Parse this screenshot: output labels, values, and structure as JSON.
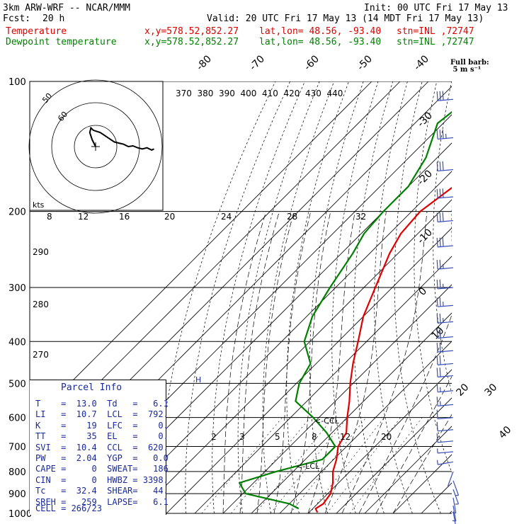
{
  "header": {
    "model": "3km ARW-WRF -- NCAR/MMM",
    "init": "Init: 00 UTC Fri 17 May 13",
    "fcst_label": "Fcst:",
    "fcst_value": "20 h",
    "valid": "Valid: 20 UTC Fri 17 May 13 (14 MDT Fri 17 May 13)",
    "temp_line": {
      "label": "Temperature",
      "xy": "x,y=578.52,852.27",
      "latlon": "lat,lon= 48.56, -93.40",
      "stn": "stn=INL ,72747"
    },
    "dew_line": {
      "label": "Dewpoint temperature",
      "xy": "x,y=578.52,852.27",
      "latlon": "lat,lon= 48.56, -93.40",
      "stn": "stn=INL ,72747"
    }
  },
  "full_barb": "Full barb:\n 5 m s⁻¹",
  "colors": {
    "temperature": "#e00000",
    "dewpoint": "#008000",
    "text_blue": "#1a2a9a",
    "barbs": "#3a4fb5"
  },
  "chart_data": {
    "type": "line",
    "title": "",
    "ylabel": "",
    "xlabel": "",
    "pressure_ticks": [
      100,
      200,
      300,
      400,
      500,
      600,
      700,
      800,
      900,
      1000
    ],
    "isotherm_labels": [
      -80,
      -70,
      -60,
      -50,
      -40,
      -30,
      -20,
      -10,
      0,
      10,
      20,
      30,
      40
    ],
    "theta_labels": [
      370,
      380,
      390,
      400,
      410,
      420,
      430,
      440
    ],
    "theta_left_labels": [
      290,
      280,
      270
    ],
    "theta_top_labels": [
      50,
      60
    ],
    "mixing_ratio_labels": [
      2,
      3,
      5,
      8,
      12,
      20
    ],
    "hodo_speed_labels": [
      8,
      12,
      16,
      20,
      24,
      28,
      32
    ],
    "hodo_kts_label": "kts",
    "ccl_label": "<-CCL",
    "lcl_label": "<-LCL",
    "series": [
      {
        "name": "Temperature",
        "points": [
          {
            "p": 100,
            "t": -52
          },
          {
            "p": 125,
            "t": -50
          },
          {
            "p": 150,
            "t": -51
          },
          {
            "p": 175,
            "t": -54
          },
          {
            "p": 200,
            "t": -57
          },
          {
            "p": 225,
            "t": -56
          },
          {
            "p": 250,
            "t": -53
          },
          {
            "p": 300,
            "t": -46
          },
          {
            "p": 350,
            "t": -40
          },
          {
            "p": 400,
            "t": -33
          },
          {
            "p": 450,
            "t": -27
          },
          {
            "p": 500,
            "t": -21
          },
          {
            "p": 550,
            "t": -15
          },
          {
            "p": 600,
            "t": -10
          },
          {
            "p": 650,
            "t": -5
          },
          {
            "p": 700,
            "t": -3
          },
          {
            "p": 750,
            "t": 1
          },
          {
            "p": 800,
            "t": 4
          },
          {
            "p": 850,
            "t": 8
          },
          {
            "p": 900,
            "t": 11
          },
          {
            "p": 950,
            "t": 12
          },
          {
            "p": 975,
            "t": 11
          },
          {
            "p": 995,
            "t": 13
          }
        ]
      },
      {
        "name": "Dewpoint temperature",
        "points": [
          {
            "p": 100,
            "t": -78
          },
          {
            "p": 125,
            "t": -82
          },
          {
            "p": 150,
            "t": -74
          },
          {
            "p": 175,
            "t": -70
          },
          {
            "p": 200,
            "t": -70
          },
          {
            "p": 225,
            "t": -69
          },
          {
            "p": 250,
            "t": -66
          },
          {
            "p": 300,
            "t": -62
          },
          {
            "p": 350,
            "t": -58
          },
          {
            "p": 400,
            "t": -52
          },
          {
            "p": 450,
            "t": -42
          },
          {
            "p": 500,
            "t": -39
          },
          {
            "p": 550,
            "t": -34
          },
          {
            "p": 600,
            "t": -22
          },
          {
            "p": 650,
            "t": -12
          },
          {
            "p": 700,
            "t": -4
          },
          {
            "p": 750,
            "t": -4
          },
          {
            "p": 800,
            "t": -16
          },
          {
            "p": 850,
            "t": -25
          },
          {
            "p": 900,
            "t": -19
          },
          {
            "p": 950,
            "t": 0
          },
          {
            "p": 975,
            "t": 5
          }
        ]
      }
    ],
    "barbs": [
      {
        "p": 110,
        "dir": 265,
        "spd": 33
      },
      {
        "p": 135,
        "dir": 265,
        "spd": 35
      },
      {
        "p": 160,
        "dir": 265,
        "spd": 34
      },
      {
        "p": 185,
        "dir": 265,
        "spd": 33
      },
      {
        "p": 210,
        "dir": 265,
        "spd": 32
      },
      {
        "p": 240,
        "dir": 265,
        "spd": 30
      },
      {
        "p": 270,
        "dir": 265,
        "spd": 29
      },
      {
        "p": 300,
        "dir": 265,
        "spd": 28
      },
      {
        "p": 330,
        "dir": 265,
        "spd": 27
      },
      {
        "p": 360,
        "dir": 265,
        "spd": 25
      },
      {
        "p": 390,
        "dir": 265,
        "spd": 24
      },
      {
        "p": 420,
        "dir": 265,
        "spd": 22
      },
      {
        "p": 450,
        "dir": 265,
        "spd": 21
      },
      {
        "p": 480,
        "dir": 265,
        "spd": 20
      },
      {
        "p": 520,
        "dir": 265,
        "spd": 18
      },
      {
        "p": 560,
        "dir": 265,
        "spd": 16
      },
      {
        "p": 600,
        "dir": 265,
        "spd": 14
      },
      {
        "p": 640,
        "dir": 265,
        "spd": 12
      },
      {
        "p": 680,
        "dir": 265,
        "spd": 10
      },
      {
        "p": 720,
        "dir": 265,
        "spd": 8
      },
      {
        "p": 760,
        "dir": 260,
        "spd": 5
      },
      {
        "p": 800,
        "dir": 200,
        "spd": 4
      },
      {
        "p": 840,
        "dir": 160,
        "spd": 6
      },
      {
        "p": 880,
        "dir": 160,
        "spd": 7
      },
      {
        "p": 920,
        "dir": 170,
        "spd": 6
      },
      {
        "p": 960,
        "dir": 170,
        "spd": 5
      },
      {
        "p": 990,
        "dir": 170,
        "spd": 4
      }
    ],
    "hodograph": [
      [
        0,
        0
      ],
      [
        -1.5,
        3
      ],
      [
        -2.5,
        6
      ],
      [
        -2,
        8
      ],
      [
        -1,
        7
      ],
      [
        2,
        6
      ],
      [
        5,
        4
      ],
      [
        8,
        2
      ],
      [
        10,
        1.5
      ],
      [
        12,
        1
      ],
      [
        14,
        0
      ],
      [
        16,
        0.3
      ],
      [
        18,
        -0.5
      ],
      [
        20,
        -1
      ],
      [
        22,
        -0.5
      ],
      [
        24,
        -1.5
      ],
      [
        25,
        -1
      ]
    ]
  },
  "parcel_info": {
    "title": "Parcel Info",
    "rows": [
      [
        "T",
        "13.0",
        "Td",
        "6.1"
      ],
      [
        "LI",
        "10.7",
        "LCL",
        "792."
      ],
      [
        "K",
        "19",
        "LFC",
        "0."
      ],
      [
        "TT",
        "35",
        "EL",
        "0."
      ],
      [
        "SVI",
        "10.4",
        "CCL",
        "620."
      ],
      [
        "PW",
        "2.04",
        "YGP",
        "0.0"
      ],
      [
        "CAPE",
        "0",
        "SWEAT",
        "186"
      ],
      [
        "CIN",
        "0",
        "HWBZ",
        "3398."
      ],
      [
        "Tc",
        "32.4",
        "SHEAR",
        "44."
      ],
      [
        "SREH",
        "259",
        "LAPSE",
        "6.1"
      ]
    ],
    "cell": "CELL = 266/23"
  }
}
